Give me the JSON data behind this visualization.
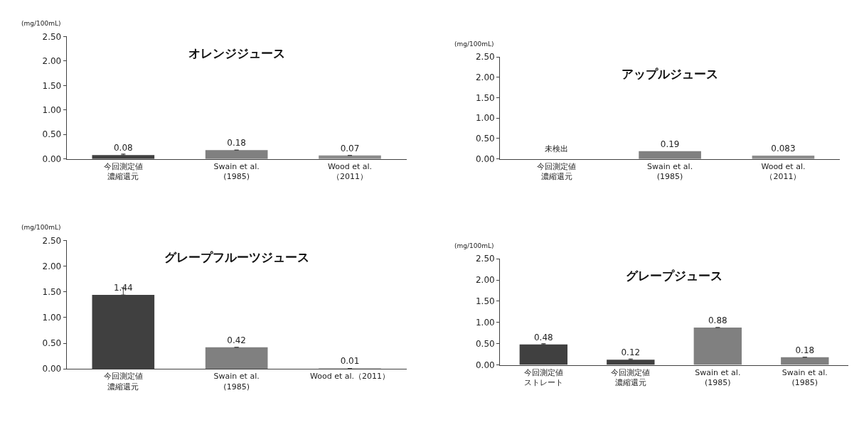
{
  "chart_data": [
    {
      "type": "bar",
      "title": "オレンジジュース",
      "ylabel": "(mg/100mL)",
      "categories": [
        "今回測定値濃縮還元",
        "Swain et al.\n(1985)",
        "Wood et al.\n（2011）"
      ],
      "values": [
        0.08,
        0.18,
        0.07
      ],
      "colors": [
        "#404040",
        "#808080",
        "#8c8c8c"
      ],
      "errors": [
        [
          0.08,
          0.1
        ],
        null,
        null
      ],
      "ylim": [
        0,
        2.5
      ],
      "yticks": [
        {
          "value": 0,
          "label": "0.00"
        },
        {
          "value": 0.5,
          "label": "0.50"
        },
        {
          "value": 1,
          "label": "1.00"
        },
        {
          "value": 1.5,
          "label": "1.50"
        },
        {
          "value": 2,
          "label": "2.00"
        },
        {
          "value": 2.5,
          "label": "2.50"
        }
      ],
      "data_labels": true
    },
    {
      "type": "bar",
      "title": "アップルジュース",
      "ylabel": "(mg/100mL)",
      "categories": [
        "今回測定値濃縮還元",
        "Swain et al.\n(1985)",
        "Wood et al.\n（2011）"
      ],
      "values": [
        null,
        0.19,
        0.083
      ],
      "colors": [
        "#404040",
        "#808080",
        "#8c8c8c"
      ],
      "annotations": [
        "未検出"
      ],
      "ylim": [
        0,
        2.5
      ],
      "yticks": [
        {
          "value": 0,
          "label": "0.00"
        },
        {
          "value": 0.5,
          "label": "0.50"
        },
        {
          "value": 1,
          "label": "1.00"
        },
        {
          "value": 1.5,
          "label": "1.50"
        },
        {
          "value": 2,
          "label": "2.00"
        },
        {
          "value": 2.5,
          "label": "2.50"
        }
      ],
      "data_labels": true
    },
    {
      "type": "bar",
      "title": "グレープフルーツジュース",
      "ylabel": "(mg/100mL)",
      "categories": [
        "今回測定値濃縮還元",
        "Swain et al.\n(1985)",
        "Wood et al.（2011）"
      ],
      "values": [
        1.44,
        0.42,
        0.01
      ],
      "colors": [
        "#404040",
        "#808080",
        "#8c8c8c"
      ],
      "errors": [
        [
          1.44,
          1.58
        ],
        null,
        null
      ],
      "ylim": [
        0,
        2.5
      ],
      "yticks": [
        {
          "value": 0,
          "label": "0.00"
        },
        {
          "value": 0.5,
          "label": "0.50"
        },
        {
          "value": 1,
          "label": "1.00"
        },
        {
          "value": 1.5,
          "label": "1.50"
        },
        {
          "value": 2,
          "label": "2.00"
        },
        {
          "value": 2.5,
          "label": "2.50"
        }
      ],
      "data_labels": true
    },
    {
      "type": "bar",
      "title": "グレープジュース",
      "ylabel": "(mg/100mL)",
      "categories": [
        "今回測定値ストレート",
        "今回測定値濃縮還元",
        "Swain et al.\n(1985)",
        "Swain et al.\n(1985)"
      ],
      "values": [
        0.48,
        0.12,
        0.88,
        0.18
      ],
      "colors": [
        "#404040",
        "#404040",
        "#808080",
        "#808080"
      ],
      "errors": [
        [
          0.48,
          0.5
        ],
        [
          0.12,
          0.14
        ],
        null,
        null
      ],
      "ylim": [
        0,
        2.5
      ],
      "yticks": [
        {
          "value": 0,
          "label": "0.00"
        },
        {
          "value": 0.5,
          "label": "0.50"
        },
        {
          "value": 1,
          "label": "1.00"
        },
        {
          "value": 1.5,
          "label": "1.50"
        },
        {
          "value": 2,
          "label": "2.00"
        },
        {
          "value": 2.5,
          "label": "2.50"
        }
      ],
      "data_labels": true
    }
  ]
}
